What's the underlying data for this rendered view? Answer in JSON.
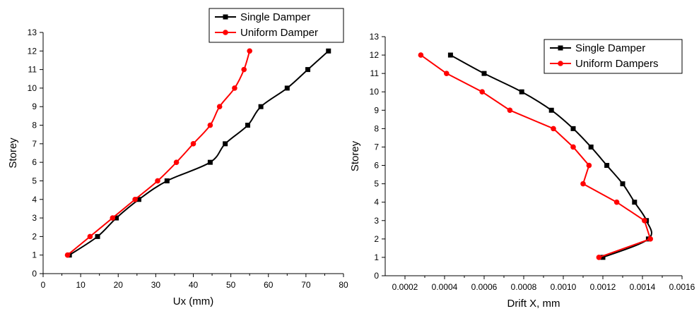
{
  "chart_data": [
    {
      "type": "line",
      "title": "",
      "xlabel": "Ux (mm)",
      "ylabel": "Storey",
      "xlim": [
        0,
        80
      ],
      "ylim": [
        0,
        13
      ],
      "xticks": [
        0,
        10,
        20,
        30,
        40,
        50,
        60,
        70,
        80
      ],
      "xtick_labels": [
        "0",
        "10",
        "20",
        "30",
        "40",
        "50",
        "60",
        "70",
        "80"
      ],
      "yticks": [
        0,
        1,
        2,
        3,
        4,
        5,
        6,
        7,
        8,
        9,
        10,
        11,
        12,
        13
      ],
      "ytick_labels": [
        "0",
        "1",
        "2",
        "3",
        "4",
        "5",
        "6",
        "7",
        "8",
        "9",
        "10",
        "11",
        "12",
        "13"
      ],
      "legend_position": "top-right",
      "grid": false,
      "series": [
        {
          "name": "Single Damper",
          "color": "#000000",
          "marker": "square",
          "smooth": true,
          "points": [
            [
              7,
              1
            ],
            [
              14.5,
              2
            ],
            [
              19.5,
              3
            ],
            [
              25.5,
              4
            ],
            [
              33,
              5
            ],
            [
              44.5,
              6
            ],
            [
              48.5,
              7
            ],
            [
              54.5,
              8
            ],
            [
              58,
              9
            ],
            [
              65,
              10
            ],
            [
              70.5,
              11
            ],
            [
              76,
              12
            ]
          ]
        },
        {
          "name": "Uniform Damper",
          "color": "#ff0000",
          "marker": "circle",
          "smooth": true,
          "points": [
            [
              6.5,
              1
            ],
            [
              12.5,
              2
            ],
            [
              18.5,
              3
            ],
            [
              24.5,
              4
            ],
            [
              30.5,
              5
            ],
            [
              35.5,
              6
            ],
            [
              40,
              7
            ],
            [
              44.5,
              8
            ],
            [
              47,
              9
            ],
            [
              51,
              10
            ],
            [
              53.5,
              11
            ],
            [
              55,
              12
            ]
          ]
        }
      ]
    },
    {
      "type": "line",
      "title": "",
      "xlabel": "Drift X, mm",
      "ylabel": "Storey",
      "xlim": [
        0.0001,
        0.0016
      ],
      "ylim": [
        0,
        13
      ],
      "xticks": [
        0.0002,
        0.0004,
        0.0006,
        0.0008,
        0.001,
        0.0012,
        0.0014,
        0.0016
      ],
      "xtick_labels": [
        "0.0002",
        "0.0004",
        "0.0006",
        "0.0008",
        "0.0010",
        "0.0012",
        "0.0014",
        "0.0016"
      ],
      "yticks": [
        0,
        1,
        2,
        3,
        4,
        5,
        6,
        7,
        8,
        9,
        10,
        11,
        12,
        13
      ],
      "ytick_labels": [
        "0",
        "1",
        "2",
        "3",
        "4",
        "5",
        "6",
        "7",
        "8",
        "9",
        "10",
        "11",
        "12",
        "13"
      ],
      "legend_position": "top-right",
      "grid": false,
      "series": [
        {
          "name": "Single Damper",
          "color": "#000000",
          "marker": "square",
          "smooth": true,
          "points": [
            [
              0.0012,
              1
            ],
            [
              0.00143,
              2
            ],
            [
              0.00142,
              3
            ],
            [
              0.00136,
              4
            ],
            [
              0.0013,
              5
            ],
            [
              0.00122,
              6
            ],
            [
              0.00114,
              7
            ],
            [
              0.00105,
              8
            ],
            [
              0.00094,
              9
            ],
            [
              0.00079,
              10
            ],
            [
              0.0006,
              11
            ],
            [
              0.00043,
              12
            ]
          ]
        },
        {
          "name": "Uniform Dampers",
          "color": "#ff0000",
          "marker": "circle",
          "smooth": false,
          "points": [
            [
              0.00118,
              1
            ],
            [
              0.00144,
              2
            ],
            [
              0.00141,
              3
            ],
            [
              0.00127,
              4
            ],
            [
              0.0011,
              5
            ],
            [
              0.00113,
              6
            ],
            [
              0.00105,
              7
            ],
            [
              0.00095,
              8
            ],
            [
              0.00073,
              9
            ],
            [
              0.00059,
              10
            ],
            [
              0.00041,
              11
            ],
            [
              0.00028,
              12
            ]
          ]
        }
      ]
    }
  ]
}
